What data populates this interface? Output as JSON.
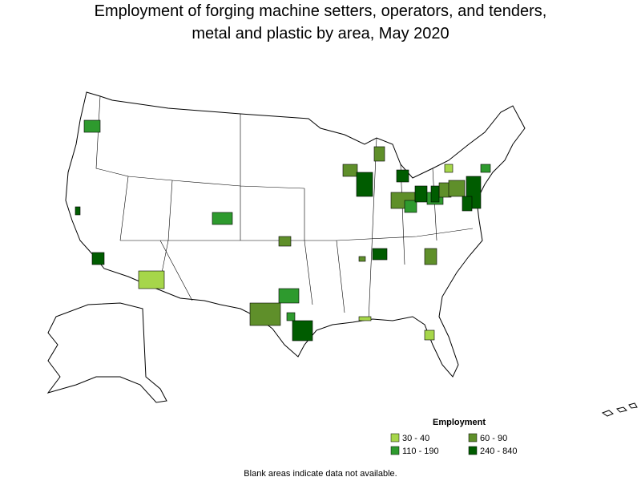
{
  "title_lines": [
    "Employment of forging machine setters, operators, and tenders,",
    "metal and plastic by area, May 2020"
  ],
  "legend": {
    "title": "Employment",
    "items": [
      {
        "label": "30 - 40",
        "color": "#a6d64a"
      },
      {
        "label": "60 - 90",
        "color": "#5f8f2a"
      },
      {
        "label": "110 - 190",
        "color": "#2e9a2e"
      },
      {
        "label": "240 - 840",
        "color": "#005c00"
      }
    ]
  },
  "note": "Blank areas indicate data not available."
}
